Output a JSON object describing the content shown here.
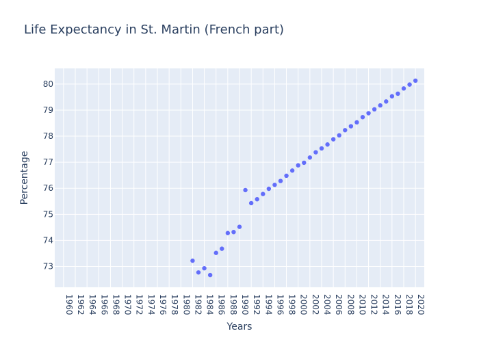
{
  "chart_data": {
    "type": "scatter",
    "title": "Life Expectancy in St. Martin (French part)",
    "xlabel": "Years",
    "ylabel": "Percentage",
    "x_tick_labels": [
      "1960",
      "1962",
      "1964",
      "1966",
      "1968",
      "1970",
      "1972",
      "1974",
      "1976",
      "1978",
      "1980",
      "1982",
      "1984",
      "1986",
      "1988",
      "1990",
      "1992",
      "1994",
      "1996",
      "1998",
      "2000",
      "2002",
      "2004",
      "2006",
      "2008",
      "2010",
      "2012",
      "2014",
      "2016",
      "2018",
      "2020"
    ],
    "y_ticks": [
      73,
      74,
      75,
      76,
      77,
      78,
      79,
      80
    ],
    "xlim": [
      1958.5,
      2021.5
    ],
    "ylim": [
      72.2,
      80.6
    ],
    "grid": true,
    "colors": {
      "marker": "#636efa",
      "plot_bg": "#e5ecf6",
      "grid": "#ffffff",
      "text": "#2a3f5f"
    },
    "x": [
      1982,
      1983,
      1984,
      1985,
      1986,
      1987,
      1988,
      1989,
      1990,
      1991,
      1992,
      1993,
      1994,
      1995,
      1996,
      1997,
      1998,
      1999,
      2000,
      2001,
      2002,
      2003,
      2004,
      2005,
      2006,
      2007,
      2008,
      2009,
      2010,
      2011,
      2012,
      2013,
      2014,
      2015,
      2016,
      2017,
      2018,
      2019,
      2020
    ],
    "y": [
      73.22,
      72.77,
      72.93,
      72.67,
      73.52,
      73.68,
      74.28,
      74.32,
      74.52,
      75.93,
      75.43,
      75.58,
      75.78,
      75.98,
      76.13,
      76.28,
      76.48,
      76.68,
      76.88,
      76.98,
      77.18,
      77.38,
      77.53,
      77.68,
      77.88,
      78.03,
      78.23,
      78.38,
      78.53,
      78.73,
      78.88,
      79.03,
      79.18,
      79.33,
      79.53,
      79.63,
      79.83,
      79.98,
      80.13
    ]
  }
}
